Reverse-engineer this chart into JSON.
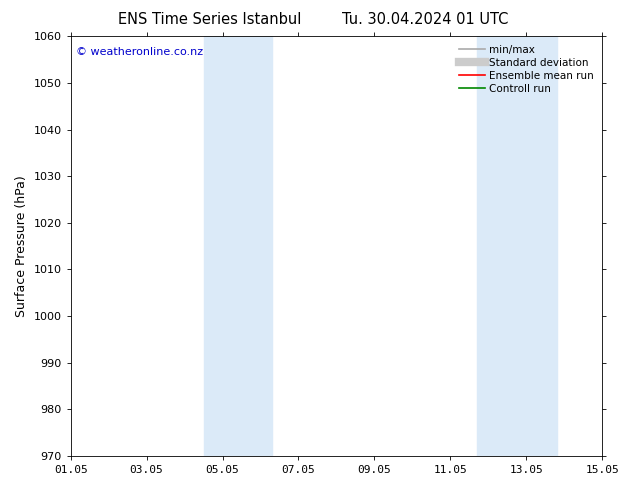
{
  "title_left": "ENS Time Series Istanbul",
  "title_right": "Tu. 30.04.2024 01 UTC",
  "ylabel": "Surface Pressure (hPa)",
  "ylim": [
    970,
    1060
  ],
  "yticks": [
    970,
    980,
    990,
    1000,
    1010,
    1020,
    1030,
    1040,
    1050,
    1060
  ],
  "xtick_labels": [
    "01.05",
    "03.05",
    "05.05",
    "07.05",
    "09.05",
    "11.05",
    "13.05",
    "15.05"
  ],
  "xtick_positions": [
    0,
    2,
    4,
    6,
    8,
    10,
    12,
    14
  ],
  "xlim": [
    0,
    14
  ],
  "shaded_bands": [
    {
      "x_start": 3.5,
      "x_end": 5.3,
      "color": "#dbeaf8"
    },
    {
      "x_start": 10.7,
      "x_end": 12.8,
      "color": "#dbeaf8"
    }
  ],
  "watermark_text": "© weatheronline.co.nz",
  "watermark_color": "#0000cc",
  "legend_items": [
    {
      "label": "min/max",
      "color": "#aaaaaa",
      "lw": 1.2
    },
    {
      "label": "Standard deviation",
      "color": "#cccccc",
      "lw": 6
    },
    {
      "label": "Ensemble mean run",
      "color": "#ff0000",
      "lw": 1.2
    },
    {
      "label": "Controll run",
      "color": "#008800",
      "lw": 1.2
    }
  ],
  "background_color": "#ffffff",
  "plot_bg_color": "#ffffff",
  "title_fontsize": 10.5,
  "tick_fontsize": 8,
  "ylabel_fontsize": 9,
  "legend_fontsize": 7.5
}
